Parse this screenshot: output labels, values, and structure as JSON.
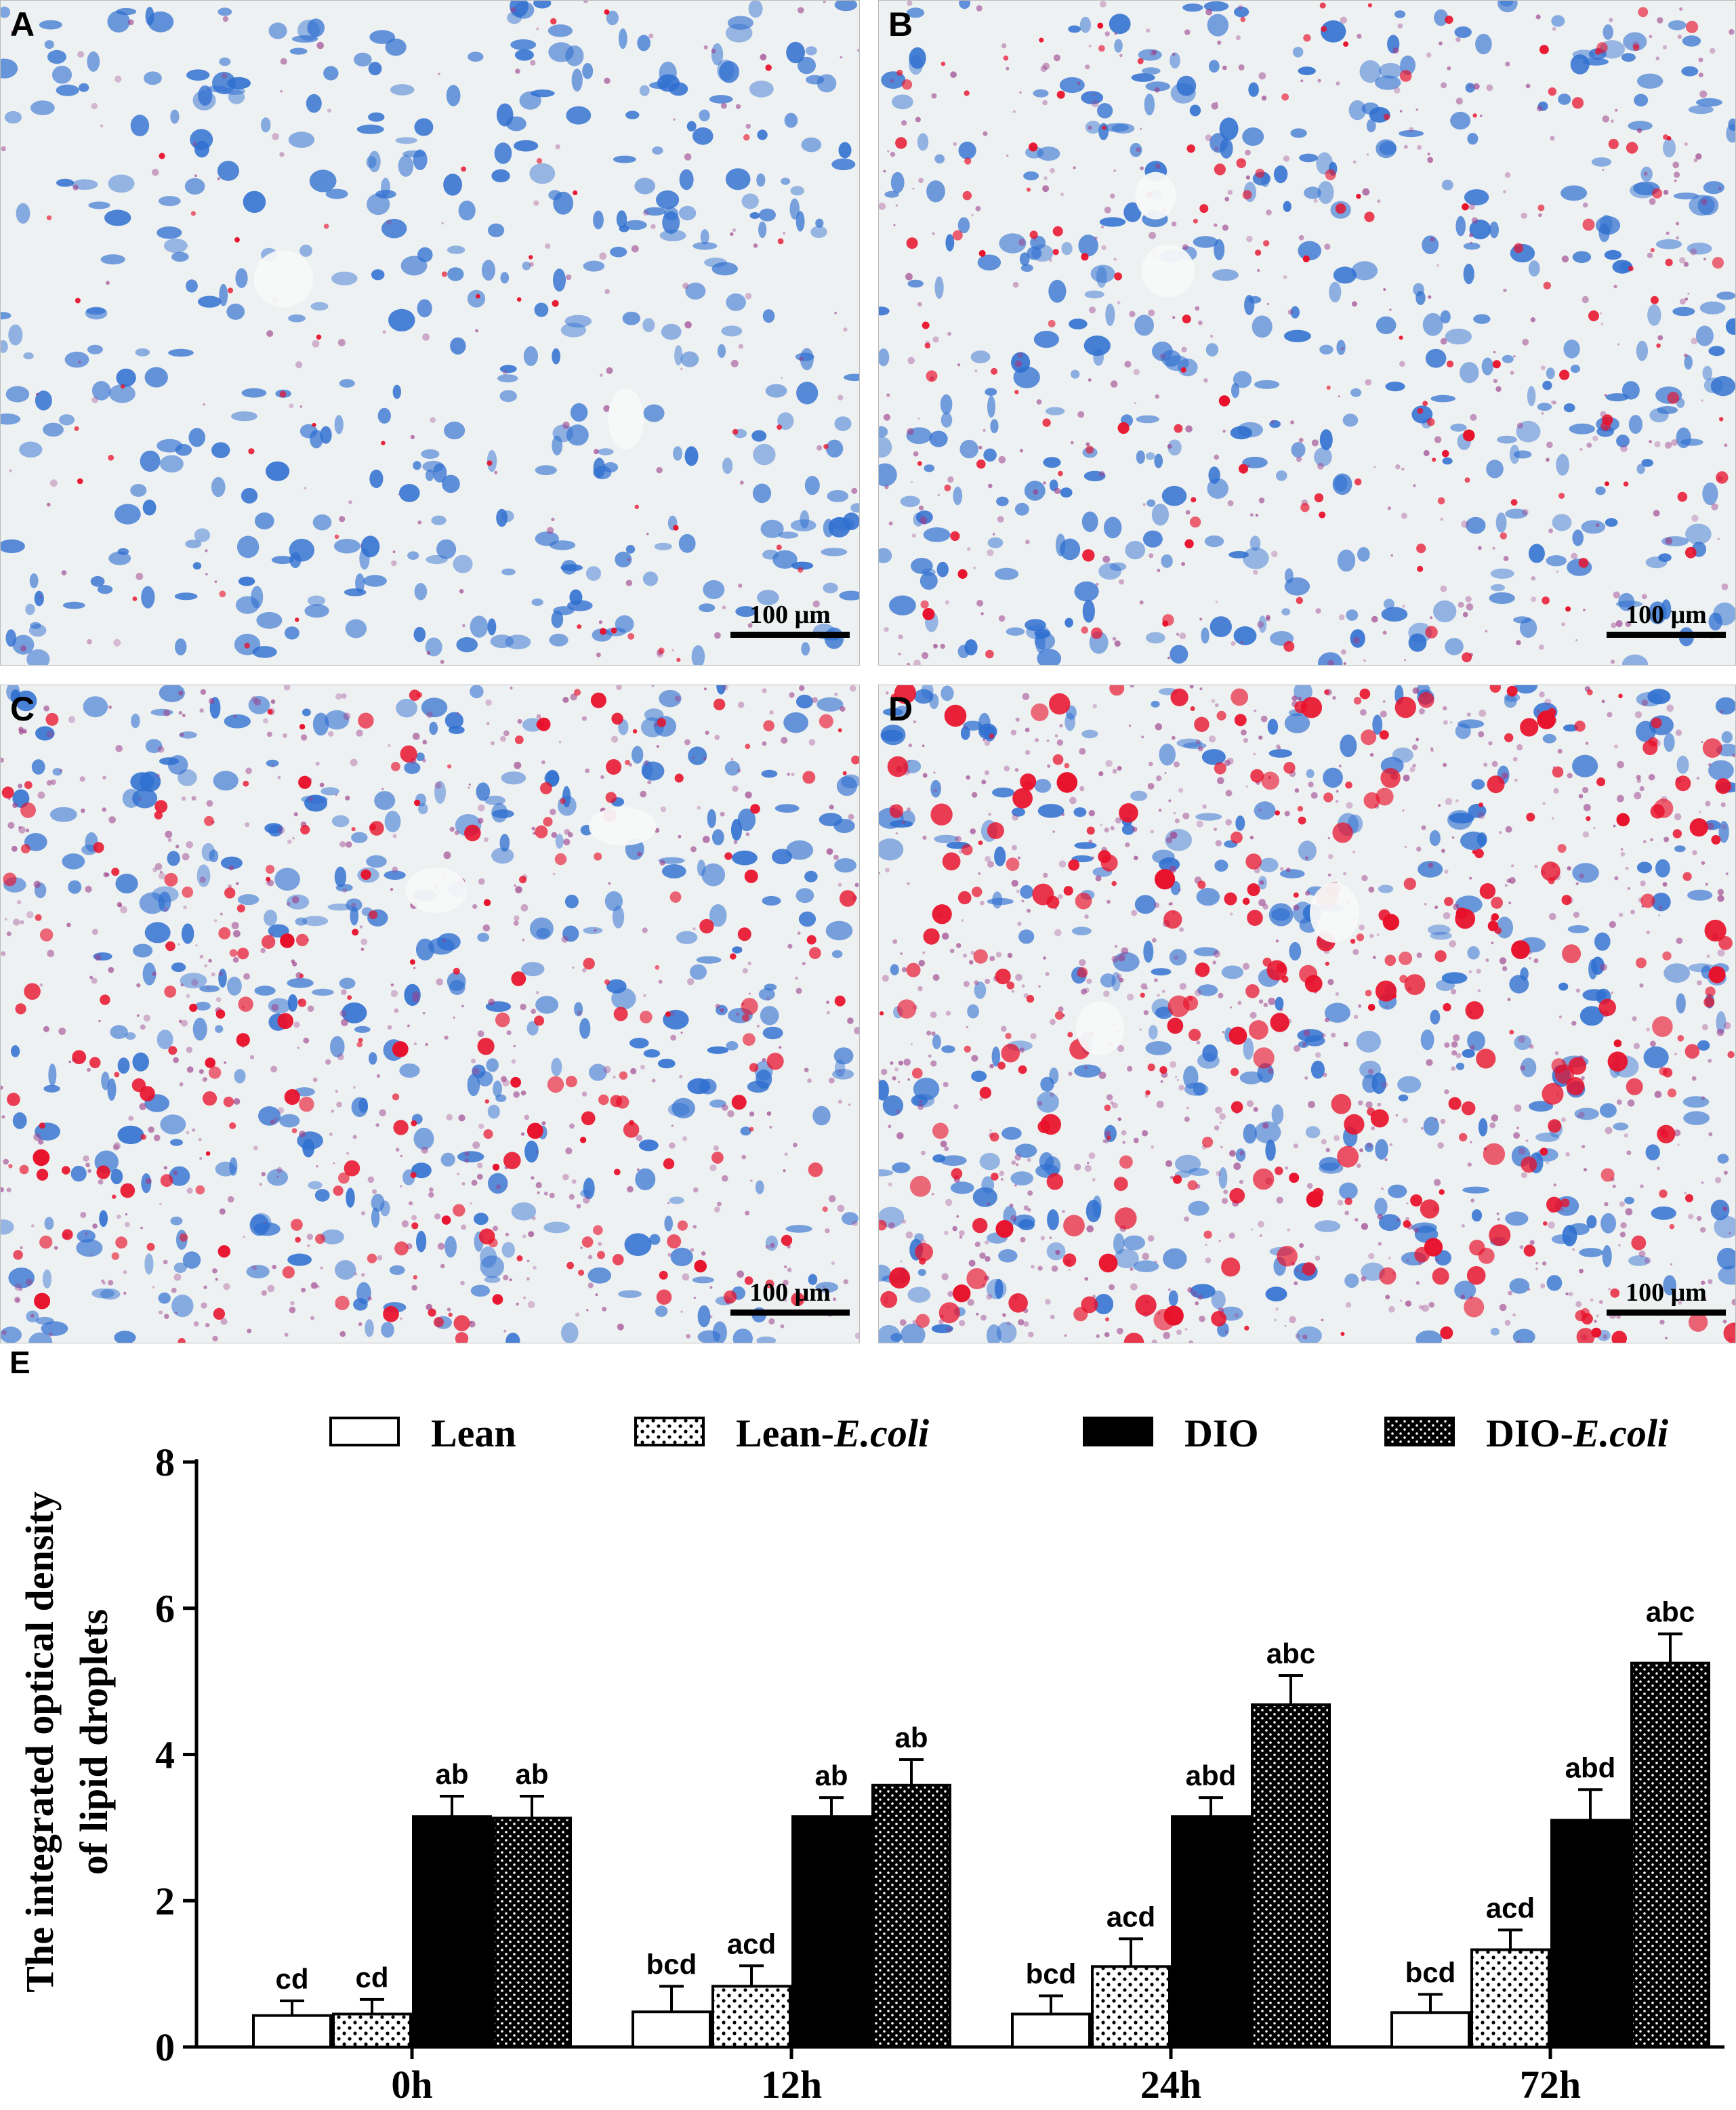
{
  "panels": [
    {
      "id": "A",
      "label": "A",
      "scalebar": "100 μm",
      "red_density": 0.15,
      "blue_density": 0.55
    },
    {
      "id": "B",
      "label": "B",
      "scalebar": "100 μm",
      "red_density": 0.45,
      "blue_density": 0.55
    },
    {
      "id": "C",
      "label": "C",
      "scalebar": "100 μm",
      "red_density": 0.7,
      "blue_density": 0.5
    },
    {
      "id": "D",
      "label": "D",
      "scalebar": "100 μm",
      "red_density": 0.95,
      "blue_density": 0.5
    }
  ],
  "chart_label": "E",
  "colors": {
    "tissue_bg": "#eef1f2",
    "blue_nuclei": "#2f6fd0",
    "red_lipid": "#e8102a",
    "purple": "#9a3d8a"
  },
  "chart_data": {
    "type": "bar",
    "categories": [
      "0h",
      "12h",
      "24h",
      "72h"
    ],
    "ylabel_line1": "The integrated optical density",
    "ylabel_line2": "of lipid droplets",
    "ylim": [
      0,
      8
    ],
    "yticks": [
      0,
      2,
      4,
      6,
      8
    ],
    "legend_position": "top",
    "series": [
      {
        "name": "Lean",
        "name_suffix": "",
        "pattern": "white",
        "values": [
          0.43,
          0.48,
          0.45,
          0.47
        ],
        "errors": [
          0.2,
          0.35,
          0.25,
          0.25
        ],
        "labels": [
          "cd",
          "bcd",
          "bcd",
          "bcd"
        ]
      },
      {
        "name": "Lean-",
        "name_suffix": "E.coli",
        "pattern": "dots",
        "values": [
          0.45,
          0.83,
          1.1,
          1.33
        ],
        "errors": [
          0.2,
          0.28,
          0.38,
          0.27
        ],
        "labels": [
          "cd",
          "acd",
          "acd",
          "acd"
        ]
      },
      {
        "name": "DIO",
        "name_suffix": "",
        "pattern": "black",
        "values": [
          3.15,
          3.15,
          3.15,
          3.1
        ],
        "errors": [
          0.28,
          0.26,
          0.26,
          0.42
        ],
        "labels": [
          "ab",
          "ab",
          "abd",
          "abd"
        ]
      },
      {
        "name": "DIO-",
        "name_suffix": "E.coli",
        "pattern": "dense",
        "values": [
          3.13,
          3.58,
          4.68,
          5.25
        ],
        "errors": [
          0.3,
          0.35,
          0.4,
          0.4
        ],
        "labels": [
          "ab",
          "ab",
          "abc",
          "abc"
        ]
      }
    ]
  }
}
